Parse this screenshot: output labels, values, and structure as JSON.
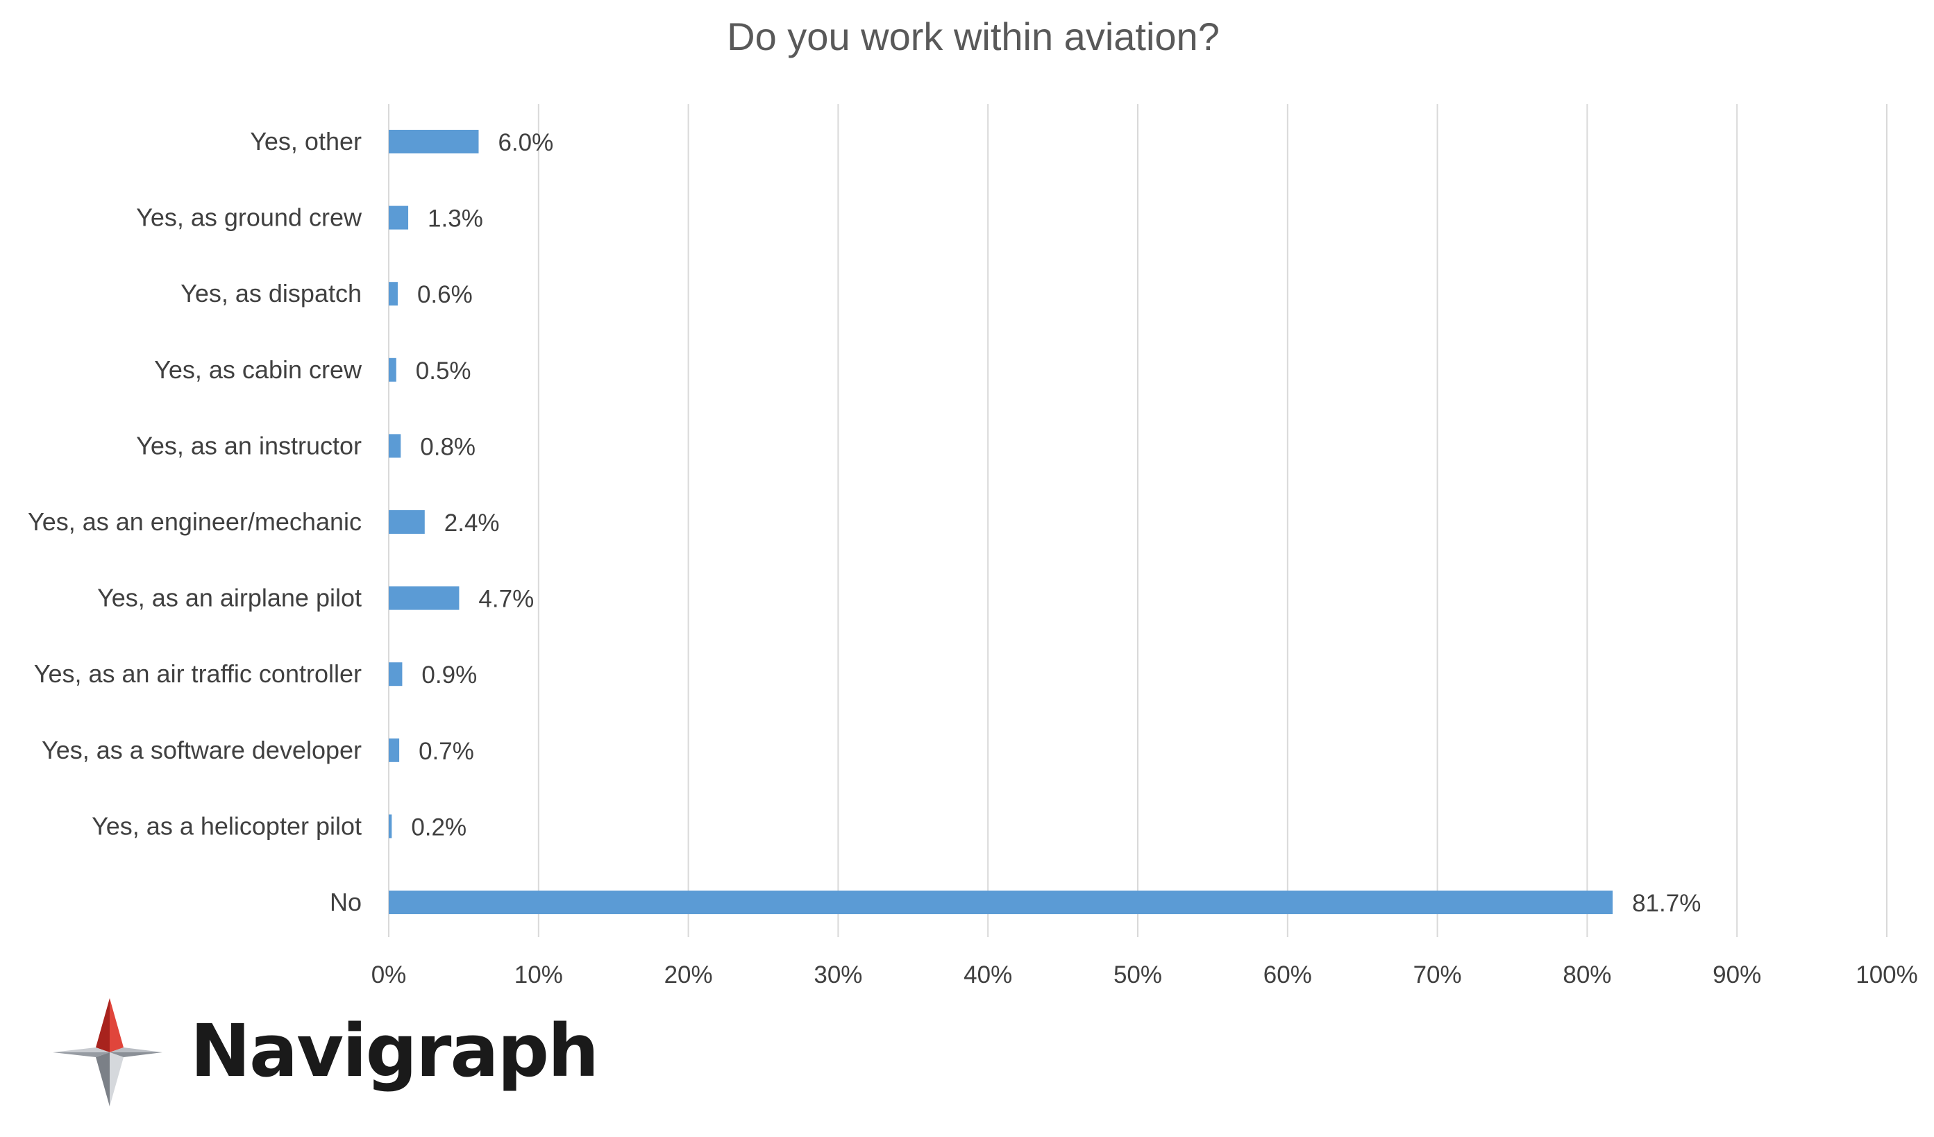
{
  "chart_data": {
    "type": "bar",
    "orientation": "horizontal",
    "title": "Do you work within aviation?",
    "categories": [
      "Yes, other",
      "Yes, as ground crew",
      "Yes, as dispatch",
      "Yes, as cabin crew",
      "Yes, as an instructor",
      "Yes, as an engineer/mechanic",
      "Yes, as an airplane pilot",
      "Yes, as an air traffic controller",
      "Yes, as a software developer",
      "Yes, as a helicopter pilot",
      "No"
    ],
    "values": [
      6.0,
      1.3,
      0.6,
      0.5,
      0.8,
      2.4,
      4.7,
      0.9,
      0.7,
      0.2,
      81.7
    ],
    "data_labels": [
      "6.0%",
      "1.3%",
      "0.6%",
      "0.5%",
      "0.8%",
      "2.4%",
      "4.7%",
      "0.9%",
      "0.7%",
      "0.2%",
      "81.7%"
    ],
    "xlim": [
      0,
      100
    ],
    "x_ticks": [
      0,
      10,
      20,
      30,
      40,
      50,
      60,
      70,
      80,
      90,
      100
    ],
    "x_tick_labels": [
      "0%",
      "10%",
      "20%",
      "30%",
      "40%",
      "50%",
      "60%",
      "70%",
      "80%",
      "90%",
      "100%"
    ],
    "xlabel": "",
    "ylabel": "",
    "grid": "vertical",
    "legend": "none",
    "bar_color": "#5b9bd5",
    "grid_color": "#d9d9d9"
  },
  "brand": {
    "name": "Navigraph",
    "logo_icon": "compass-star-icon",
    "accent_color": "#c8312a",
    "mark_gray": "#8a8f96"
  }
}
